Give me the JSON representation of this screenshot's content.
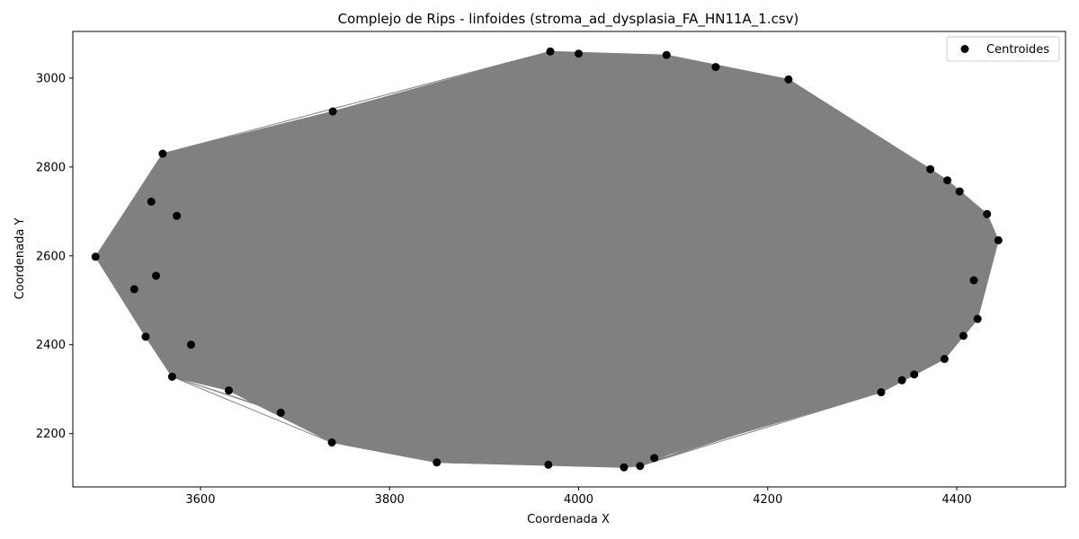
{
  "chart_data": {
    "type": "scatter",
    "title": "Complejo de Rips - linfoides (stroma_ad_dysplasia_FA_HN11A_1.csv)",
    "xlabel": "Coordenada X",
    "ylabel": "Coordenada Y",
    "xlim": [
      3465,
      4515
    ],
    "ylim": [
      2080,
      3105
    ],
    "xticks": [
      3600,
      3800,
      4000,
      4200,
      4400
    ],
    "yticks": [
      2200,
      2400,
      2600,
      2800,
      3000
    ],
    "grid": false,
    "legend_position": "top-right",
    "series": [
      {
        "name": "Centroides",
        "color": "#000000",
        "marker": "circle",
        "points": [
          [
            3489,
            2598
          ],
          [
            3530,
            2525
          ],
          [
            3542,
            2418
          ],
          [
            3548,
            2722
          ],
          [
            3553,
            2555
          ],
          [
            3560,
            2830
          ],
          [
            3570,
            2328
          ],
          [
            3575,
            2690
          ],
          [
            3590,
            2400
          ],
          [
            3630,
            2297
          ],
          [
            3685,
            2247
          ],
          [
            3739,
            2180
          ],
          [
            3740,
            2925
          ],
          [
            3850,
            2135
          ],
          [
            3968,
            2130
          ],
          [
            3970,
            3060
          ],
          [
            4000,
            3055
          ],
          [
            4048,
            2124
          ],
          [
            4065,
            2127
          ],
          [
            4080,
            2145
          ],
          [
            4093,
            3052
          ],
          [
            4145,
            3025
          ],
          [
            4222,
            2997
          ],
          [
            4320,
            2293
          ],
          [
            4342,
            2320
          ],
          [
            4355,
            2333
          ],
          [
            4372,
            2795
          ],
          [
            4387,
            2368
          ],
          [
            4390,
            2770
          ],
          [
            4403,
            2745
          ],
          [
            4407,
            2420
          ],
          [
            4418,
            2545
          ],
          [
            4422,
            2458
          ],
          [
            4432,
            2694
          ],
          [
            4444,
            2635
          ]
        ]
      },
      {
        "name": "edges",
        "color": "#808080"
      }
    ]
  }
}
